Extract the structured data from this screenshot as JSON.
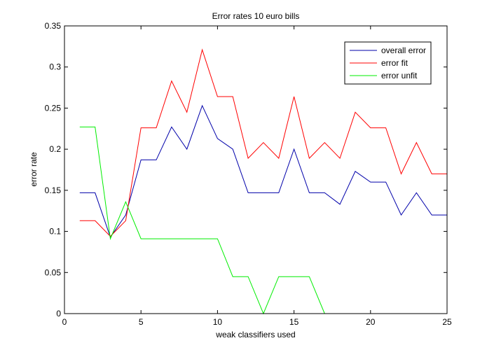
{
  "chart_data": {
    "type": "line",
    "title": "Error rates 10 euro bills",
    "xlabel": "weak classifiers used",
    "ylabel": "error rate",
    "xlim": [
      0,
      25
    ],
    "ylim": [
      0,
      0.35
    ],
    "xticks": [
      0,
      5,
      10,
      15,
      20,
      25
    ],
    "xtick_labels": [
      "0",
      "5",
      "10",
      "15",
      "20",
      "25"
    ],
    "yticks": [
      0,
      0.05,
      0.1,
      0.15,
      0.2,
      0.25,
      0.3,
      0.35
    ],
    "ytick_labels": [
      "0",
      "0.05",
      "0.1",
      "0.15",
      "0.2",
      "0.25",
      "0.3",
      "0.35"
    ],
    "grid": false,
    "legend_position": "top-right",
    "x": [
      1,
      2,
      3,
      4,
      5,
      6,
      7,
      8,
      9,
      10,
      11,
      12,
      13,
      14,
      15,
      16,
      17,
      18,
      19,
      20,
      21,
      22,
      23,
      24,
      25
    ],
    "series": [
      {
        "name": "overall error",
        "color": "#0000aa",
        "values": [
          0.147,
          0.147,
          0.093,
          0.12,
          0.187,
          0.187,
          0.227,
          0.2,
          0.253,
          0.213,
          0.2,
          0.147,
          0.147,
          0.147,
          0.2,
          0.147,
          0.147,
          0.133,
          0.173,
          0.16,
          0.16,
          0.12,
          0.147,
          0.12,
          0.12
        ]
      },
      {
        "name": "error fit",
        "color": "#ff0000",
        "values": [
          0.113,
          0.113,
          0.094,
          0.113,
          0.226,
          0.226,
          0.283,
          0.245,
          0.321,
          0.264,
          0.264,
          0.189,
          0.208,
          0.189,
          0.264,
          0.189,
          0.208,
          0.189,
          0.245,
          0.226,
          0.226,
          0.17,
          0.208,
          0.17,
          0.17
        ]
      },
      {
        "name": "error unfit",
        "color": "#00ee00",
        "values": [
          0.227,
          0.227,
          0.091,
          0.136,
          0.091,
          0.091,
          0.091,
          0.091,
          0.091,
          0.091,
          0.045,
          0.045,
          0,
          0.045,
          0.045,
          0.045,
          0,
          null,
          null,
          null,
          null,
          null,
          null,
          null,
          null
        ]
      }
    ]
  }
}
